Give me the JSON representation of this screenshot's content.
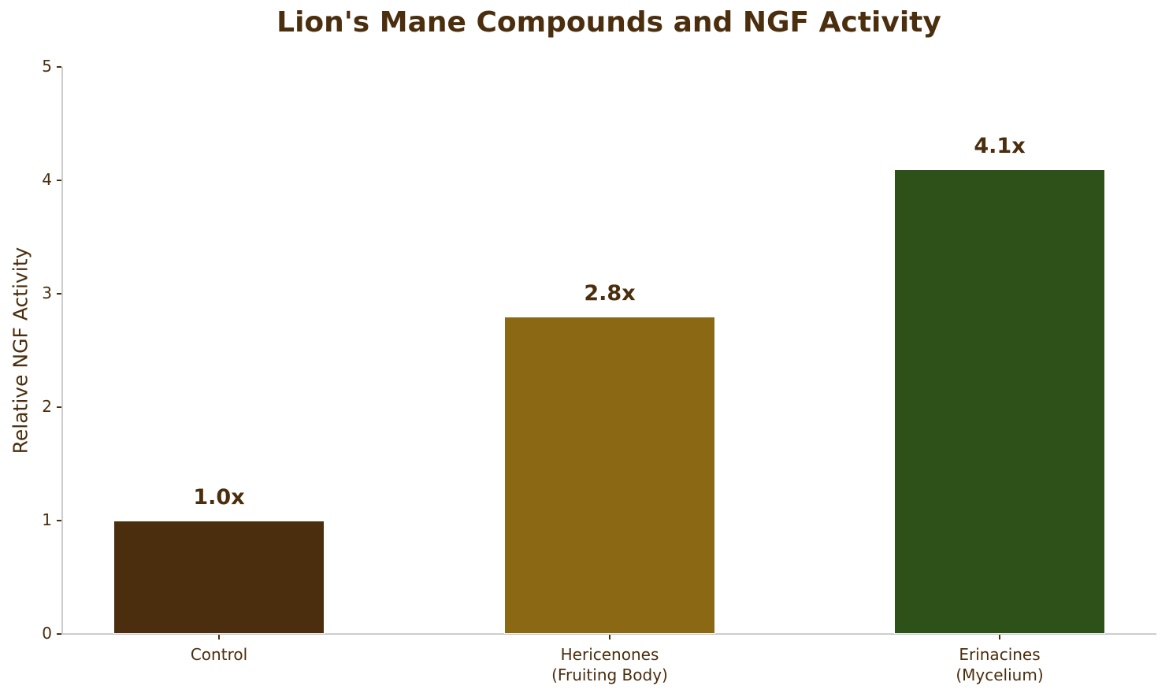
{
  "chart_data": {
    "type": "bar",
    "title": "Lion's Mane Compounds and NGF Activity",
    "xlabel": "",
    "ylabel": "Relative NGF Activity",
    "ylim": [
      0,
      5
    ],
    "yticks": [
      "0",
      "1",
      "2",
      "3",
      "4",
      "5"
    ],
    "categories": [
      "Control",
      "Hericenones\n(Fruiting Body)",
      "Erinacines\n(Mycelium)"
    ],
    "values": [
      1.0,
      2.8,
      4.1
    ],
    "data_labels": [
      "1.0x",
      "2.8x",
      "4.1x"
    ],
    "colors": [
      "#4a2e0e",
      "#8b6914",
      "#2e5019"
    ],
    "grid": false,
    "legend": null
  }
}
